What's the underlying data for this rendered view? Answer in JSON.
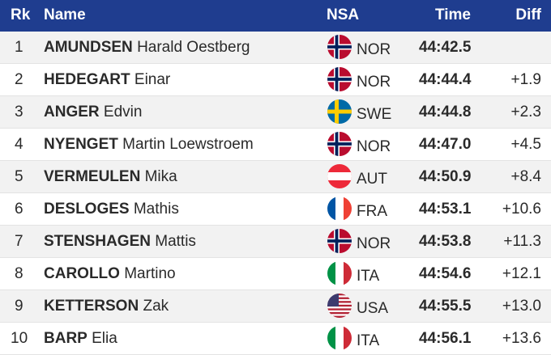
{
  "header": {
    "rk": "Rk",
    "name": "Name",
    "nsa": "NSA",
    "time": "Time",
    "diff": "Diff"
  },
  "rows": [
    {
      "rk": "1",
      "last": "AMUNDSEN",
      "first": "Harald Oestberg",
      "flag": "norway-flag-icon",
      "nsa": "NOR",
      "time": "44:42.5",
      "diff": ""
    },
    {
      "rk": "2",
      "last": "HEDEGART",
      "first": "Einar",
      "flag": "norway-flag-icon",
      "nsa": "NOR",
      "time": "44:44.4",
      "diff": "+1.9"
    },
    {
      "rk": "3",
      "last": "ANGER",
      "first": "Edvin",
      "flag": "sweden-flag-icon",
      "nsa": "SWE",
      "time": "44:44.8",
      "diff": "+2.3"
    },
    {
      "rk": "4",
      "last": "NYENGET",
      "first": "Martin Loewstroem",
      "flag": "norway-flag-icon",
      "nsa": "NOR",
      "time": "44:47.0",
      "diff": "+4.5"
    },
    {
      "rk": "5",
      "last": "VERMEULEN",
      "first": "Mika",
      "flag": "austria-flag-icon",
      "nsa": "AUT",
      "time": "44:50.9",
      "diff": "+8.4"
    },
    {
      "rk": "6",
      "last": "DESLOGES",
      "first": "Mathis",
      "flag": "france-flag-icon",
      "nsa": "FRA",
      "time": "44:53.1",
      "diff": "+10.6"
    },
    {
      "rk": "7",
      "last": "STENSHAGEN",
      "first": "Mattis",
      "flag": "norway-flag-icon",
      "nsa": "NOR",
      "time": "44:53.8",
      "diff": "+11.3"
    },
    {
      "rk": "8",
      "last": "CAROLLO",
      "first": "Martino",
      "flag": "italy-flag-icon",
      "nsa": "ITA",
      "time": "44:54.6",
      "diff": "+12.1"
    },
    {
      "rk": "9",
      "last": "KETTERSON",
      "first": "Zak",
      "flag": "usa-flag-icon",
      "nsa": "USA",
      "time": "44:55.5",
      "diff": "+13.0"
    },
    {
      "rk": "10",
      "last": "BARP",
      "first": "Elia",
      "flag": "italy-flag-icon",
      "nsa": "ITA",
      "time": "44:56.1",
      "diff": "+13.6"
    }
  ],
  "colors": {
    "header_bg": "#1f3d8f",
    "header_text": "#ffffff",
    "row_alt": "#f2f2f2"
  }
}
